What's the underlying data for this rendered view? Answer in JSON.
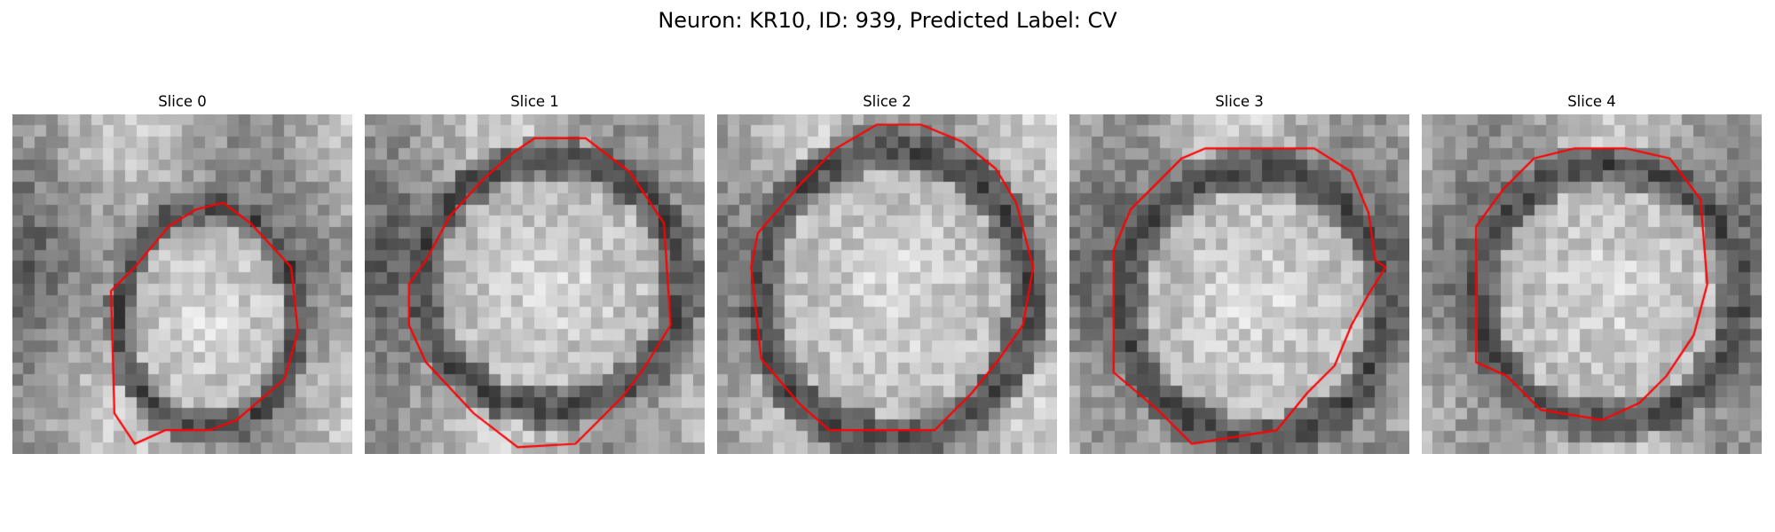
{
  "figure": {
    "title": "Neuron: KR10, ID: 939, Predicted Label: CV"
  },
  "panels": [
    {
      "title": "Slice 0",
      "image": "grayscale-neuron-slice",
      "overlay": "red-contour"
    },
    {
      "title": "Slice 1",
      "image": "grayscale-neuron-slice",
      "overlay": "red-contour"
    },
    {
      "title": "Slice 2",
      "image": "grayscale-neuron-slice",
      "overlay": "red-contour"
    },
    {
      "title": "Slice 3",
      "image": "grayscale-neuron-slice",
      "overlay": "red-contour"
    },
    {
      "title": "Slice 4",
      "image": "grayscale-neuron-slice",
      "overlay": "red-contour"
    }
  ],
  "colors": {
    "contour": "#ff0000",
    "background": "#ffffff"
  }
}
